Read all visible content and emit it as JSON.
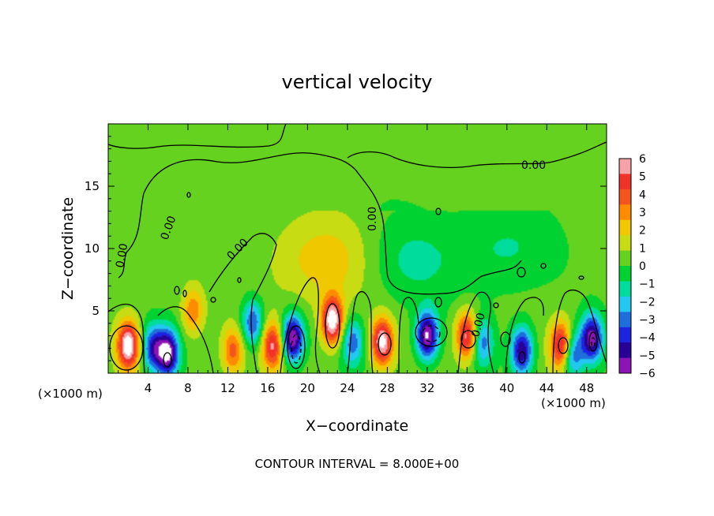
{
  "chart_data": {
    "type": "heatmap",
    "title": "vertical velocity",
    "xlabel": "X−coordinate",
    "ylabel": "Z−coordinate",
    "x_unit": "(×1000 m)",
    "y_unit": "(×1000 m)",
    "xlim": [
      0,
      50
    ],
    "ylim": [
      0,
      20
    ],
    "x_ticks": [
      4,
      8,
      12,
      16,
      20,
      24,
      28,
      32,
      36,
      40,
      44,
      48
    ],
    "y_ticks": [
      5,
      10,
      15
    ],
    "x_tick_labels": [
      "4",
      "8",
      "12",
      "16",
      "20",
      "24",
      "28",
      "32",
      "36",
      "40",
      "44",
      "48"
    ],
    "y_tick_labels": [
      "5",
      "10",
      "15"
    ],
    "colorbar": {
      "min": -6,
      "max": 6,
      "tick_values": [
        6,
        5,
        4,
        3,
        2,
        1,
        0,
        -1,
        -2,
        -3,
        -4,
        -5,
        -6
      ],
      "tick_labels": [
        "6",
        "5",
        "4",
        "3",
        "2",
        "1",
        "0",
        "−1",
        "−2",
        "−3",
        "−4",
        "−5",
        "−6"
      ],
      "colors": [
        "#f5a3a8",
        "#f03228",
        "#f5541e",
        "#ff8c00",
        "#f0c800",
        "#c8dc14",
        "#64d21e",
        "#00d232",
        "#00dc9b",
        "#23c8f0",
        "#1e6edc",
        "#1e23e1",
        "#280096",
        "#8c14b4"
      ]
    },
    "contour_labels": [
      "0.00",
      "0.00",
      "0.00",
      "0.00",
      "0.00",
      "0.00"
    ],
    "contour_interval_text": "CONTOUR INTERVAL = 8.000E+00",
    "features": [
      {
        "x": 2.0,
        "z": 2.2,
        "value": 6.5
      },
      {
        "x": 6.0,
        "z": 1.6,
        "value": -6.5
      },
      {
        "x": 4.5,
        "z": 2.0,
        "value": -4.5
      },
      {
        "x": 8.5,
        "z": 5.0,
        "value": 3.0
      },
      {
        "x": 12.5,
        "z": 1.8,
        "value": 3.5
      },
      {
        "x": 14.5,
        "z": 4.0,
        "value": -4.0
      },
      {
        "x": 16.5,
        "z": 2.2,
        "value": 5.0
      },
      {
        "x": 18.5,
        "z": 2.8,
        "value": -6.5
      },
      {
        "x": 22.5,
        "z": 4.2,
        "value": 6.5
      },
      {
        "x": 24.5,
        "z": 2.5,
        "value": -3.5
      },
      {
        "x": 27.5,
        "z": 2.5,
        "value": 6.0
      },
      {
        "x": 32.0,
        "z": 3.0,
        "value": -6.5
      },
      {
        "x": 36.0,
        "z": 3.0,
        "value": 5.5
      },
      {
        "x": 37.5,
        "z": 2.5,
        "value": -3.5
      },
      {
        "x": 41.5,
        "z": 1.8,
        "value": -5.5
      },
      {
        "x": 45.5,
        "z": 2.2,
        "value": 6.0
      },
      {
        "x": 46.5,
        "z": 1.5,
        "value": -4.5
      },
      {
        "x": 48.5,
        "z": 2.8,
        "value": -6.0
      },
      {
        "x": 22.0,
        "z": 9.0,
        "value": 2.0
      },
      {
        "x": 30.0,
        "z": 9.0,
        "value": -1.5
      },
      {
        "x": 40.0,
        "z": 10.0,
        "value": -1.3
      }
    ]
  }
}
